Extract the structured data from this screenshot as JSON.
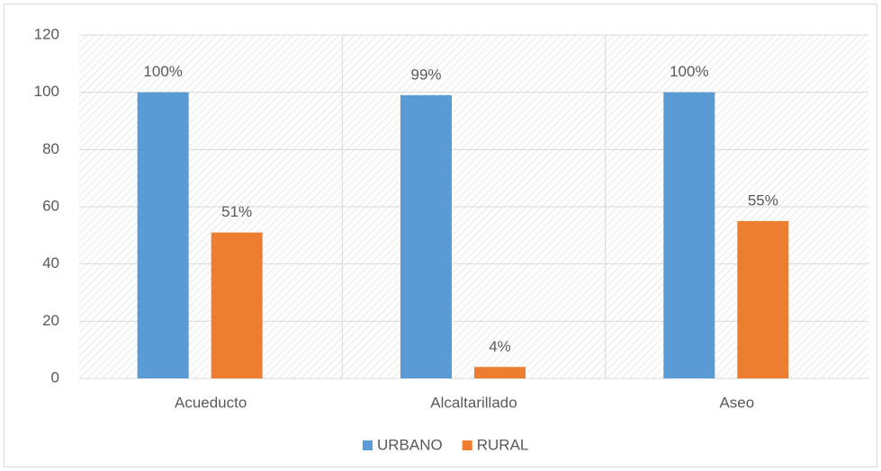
{
  "chart_data": {
    "type": "bar",
    "categories": [
      "Acueducto",
      "Alcaltarillado",
      "Aseo"
    ],
    "series": [
      {
        "name": "URBANO",
        "color": "#5b9bd5",
        "values": [
          100,
          99,
          100
        ],
        "value_labels": [
          "100%",
          "99%",
          "100%"
        ]
      },
      {
        "name": "RURAL",
        "color": "#ed7d31",
        "values": [
          51,
          4,
          55
        ],
        "value_labels": [
          "51%",
          "4%",
          "55%"
        ]
      }
    ],
    "ylim": [
      0,
      120
    ],
    "yticks": [
      0,
      20,
      40,
      60,
      80,
      100,
      120
    ],
    "grid": true,
    "legend": "bottom"
  }
}
